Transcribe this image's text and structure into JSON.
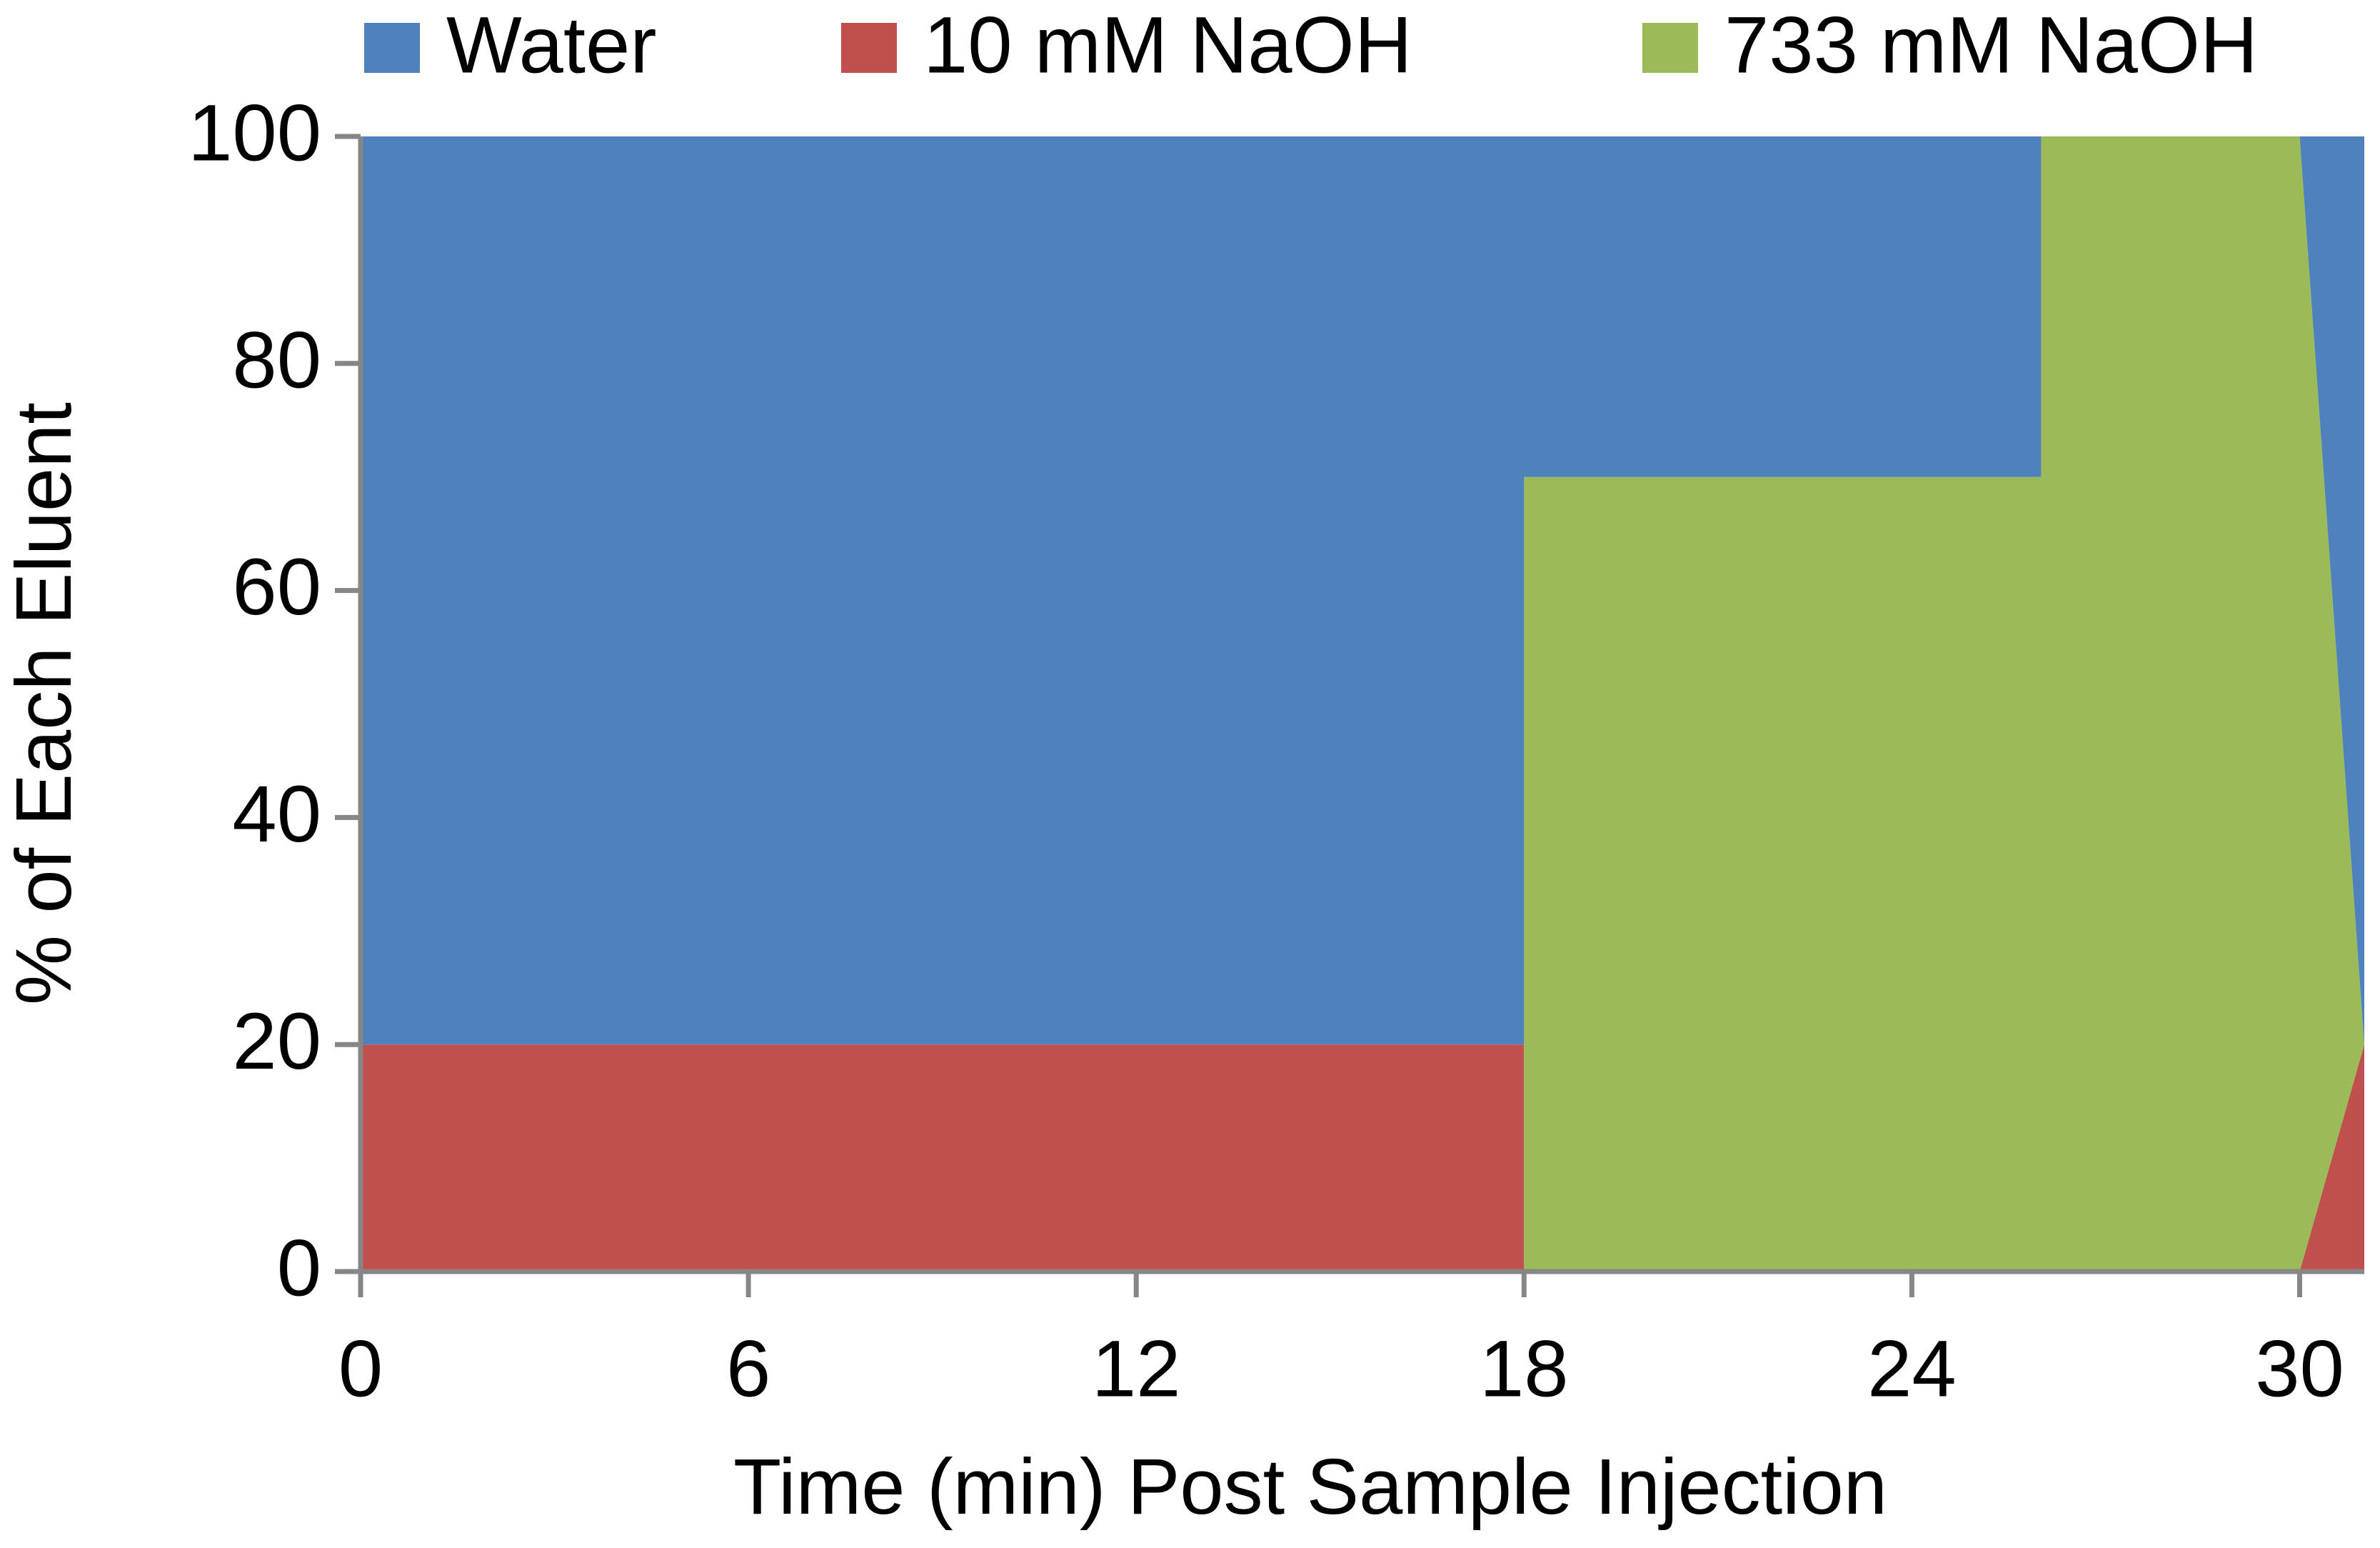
{
  "chart_data": {
    "type": "stacked_area",
    "x_label": "Time (min) Post Sample Injection",
    "y_label": "%  of Each Eluent",
    "x": [
      0,
      18,
      18,
      26,
      26,
      30,
      31
    ],
    "series": [
      {
        "name": "10 mM NaOH",
        "color": "#c0504d",
        "values": [
          20,
          20,
          0,
          0,
          0,
          0,
          20
        ]
      },
      {
        "name": "733 mM NaOH",
        "color": "#9bbb59",
        "values": [
          0,
          0,
          70,
          70,
          100,
          100,
          0
        ]
      },
      {
        "name": "Water",
        "color": "#4f81bd",
        "values": [
          80,
          80,
          30,
          30,
          0,
          0,
          80
        ]
      }
    ],
    "legend_order": [
      "Water",
      "10 mM NaOH",
      "733 mM NaOH"
    ],
    "xlim": [
      0,
      31
    ],
    "xticks": [
      0,
      6,
      12,
      18,
      24,
      30
    ],
    "ylim": [
      0,
      100
    ],
    "yticks": [
      0,
      20,
      40,
      60,
      80,
      100
    ],
    "grid": false,
    "legend": "top"
  }
}
